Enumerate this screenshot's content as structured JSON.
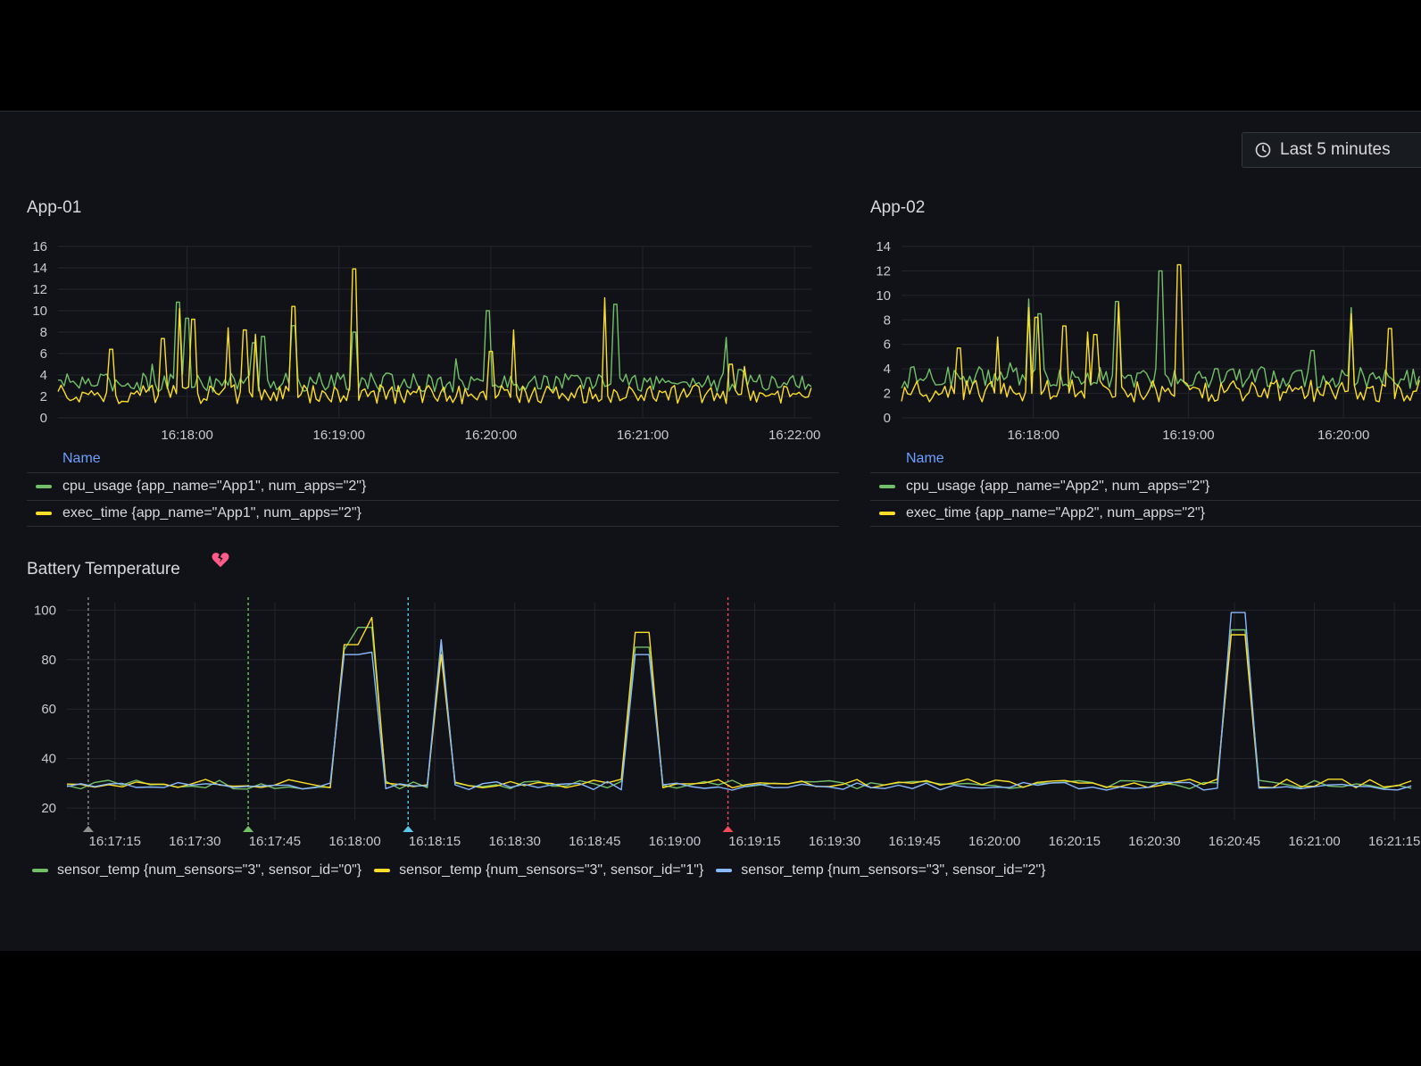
{
  "time_picker": {
    "label": "Last 5 minutes"
  },
  "colors": {
    "green": "#73bf69",
    "yellow": "#fade2a",
    "blue": "#8ab8ff",
    "grid": "#24262c",
    "legend_header": "#6e9fff",
    "annotation_gray": "#8e8e8e",
    "annotation_green": "#73bf69",
    "annotation_cyan": "#5ec7e6",
    "annotation_red": "#f2495c"
  },
  "panels": {
    "app01": {
      "title": "App-01",
      "legend_header": "Name",
      "legend": [
        {
          "label": "cpu_usage {app_name=\"App1\", num_apps=\"2\"}",
          "color": "#73bf69"
        },
        {
          "label": "exec_time {app_name=\"App1\", num_apps=\"2\"}",
          "color": "#fade2a"
        }
      ]
    },
    "app02": {
      "title": "App-02",
      "legend_header": "Name",
      "legend": [
        {
          "label": "cpu_usage {app_name=\"App2\", num_apps=\"2\"}",
          "color": "#73bf69"
        },
        {
          "label": "exec_time {app_name=\"App2\", num_apps=\"2\"}",
          "color": "#fade2a"
        }
      ]
    },
    "battery": {
      "title": "Battery Temperature",
      "status_icon": "broken-heart-icon",
      "legend": [
        {
          "label": "sensor_temp {num_sensors=\"3\", sensor_id=\"0\"}",
          "color": "#73bf69"
        },
        {
          "label": "sensor_temp {num_sensors=\"3\", sensor_id=\"1\"}",
          "color": "#fade2a"
        },
        {
          "label": "sensor_temp {num_sensors=\"3\", sensor_id=\"2\"}",
          "color": "#8ab8ff"
        }
      ]
    }
  },
  "chart_data": [
    {
      "id": "app01",
      "type": "line",
      "title": "App-01",
      "yticks": [
        0,
        2,
        4,
        6,
        8,
        10,
        12,
        14,
        16
      ],
      "ylim": [
        0,
        16
      ],
      "xlim": [
        "16:17:09",
        "16:22:07"
      ],
      "xticks": [
        "16:18:00",
        "16:19:00",
        "16:20:00",
        "16:21:00",
        "16:22:00"
      ],
      "series": [
        {
          "name": "cpu_usage {app_name=\"App1\", num_apps=\"2\"}",
          "color": "#73bf69",
          "baseline": 3.3,
          "spikes": [
            [
              "16:17:46",
              5.0
            ],
            [
              "16:17:56",
              10.8
            ],
            [
              "16:18:00",
              9.3
            ],
            [
              "16:18:26",
              7.0
            ],
            [
              "16:18:30",
              7.6
            ],
            [
              "16:18:42",
              8.6
            ],
            [
              "16:19:06",
              8.0
            ],
            [
              "16:19:46",
              5.5
            ],
            [
              "16:19:59",
              10.0
            ],
            [
              "16:20:49",
              10.6
            ],
            [
              "16:21:33",
              7.5
            ],
            [
              "16:21:38",
              4.5
            ]
          ]
        },
        {
          "name": "exec_time {app_name=\"App1\", num_apps=\"2\"}",
          "color": "#fade2a",
          "baseline": 2.2,
          "spikes": [
            [
              "16:17:30",
              6.4
            ],
            [
              "16:17:50",
              7.4
            ],
            [
              "16:17:57",
              10.2
            ],
            [
              "16:18:02",
              9.2
            ],
            [
              "16:18:16",
              8.4
            ],
            [
              "16:18:23",
              8.2
            ],
            [
              "16:18:27",
              7.8
            ],
            [
              "16:18:42",
              10.4
            ],
            [
              "16:19:06",
              13.9
            ],
            [
              "16:20:00",
              6.2
            ],
            [
              "16:20:09",
              8.2
            ],
            [
              "16:20:45",
              11.2
            ],
            [
              "16:21:35",
              5.0
            ],
            [
              "16:21:40",
              4.8
            ]
          ]
        }
      ]
    },
    {
      "id": "app02",
      "type": "line",
      "title": "App-02",
      "yticks": [
        0,
        2,
        4,
        6,
        8,
        10,
        12,
        14
      ],
      "ylim": [
        0,
        14
      ],
      "xlim": [
        "16:17:09",
        "16:20:30"
      ],
      "xticks": [
        "16:18:00",
        "16:19:00",
        "16:20:00"
      ],
      "series": [
        {
          "name": "cpu_usage {app_name=\"App2\", num_apps=\"2\"}",
          "color": "#73bf69",
          "baseline": 3.3,
          "spikes": [
            [
              "16:17:51",
              4.5
            ],
            [
              "16:17:58",
              9.7
            ],
            [
              "16:18:02",
              8.5
            ],
            [
              "16:18:32",
              9.5
            ],
            [
              "16:18:49",
              12.0
            ],
            [
              "16:19:48",
              5.5
            ],
            [
              "16:20:03",
              9.0
            ]
          ]
        },
        {
          "name": "exec_time {app_name=\"App2\", num_apps=\"2\"}",
          "color": "#fade2a",
          "baseline": 2.2,
          "spikes": [
            [
              "16:17:31",
              5.7
            ],
            [
              "16:17:46",
              6.6
            ],
            [
              "16:17:58",
              9.0
            ],
            [
              "16:18:01",
              8.2
            ],
            [
              "16:18:12",
              7.5
            ],
            [
              "16:18:21",
              7.0
            ],
            [
              "16:18:24",
              6.8
            ],
            [
              "16:18:33",
              9.4
            ],
            [
              "16:18:56",
              12.5
            ],
            [
              "16:20:03",
              8.5
            ],
            [
              "16:20:18",
              7.3
            ]
          ]
        }
      ]
    },
    {
      "id": "battery",
      "type": "line",
      "title": "Battery Temperature",
      "yticks": [
        20,
        40,
        60,
        80,
        100
      ],
      "ylim": [
        15,
        103
      ],
      "xlim": [
        "16:17:06",
        "16:21:20"
      ],
      "xticks": [
        "16:17:15",
        "16:17:30",
        "16:17:45",
        "16:18:00",
        "16:18:15",
        "16:18:30",
        "16:18:45",
        "16:19:00",
        "16:19:15",
        "16:19:30",
        "16:19:45",
        "16:20:00",
        "16:20:15",
        "16:20:30",
        "16:20:45",
        "16:21:00",
        "16:21:15"
      ],
      "annotations": [
        {
          "time": "16:17:10",
          "color": "#8e8e8e"
        },
        {
          "time": "16:17:40",
          "color": "#73bf69"
        },
        {
          "time": "16:18:10",
          "color": "#5ec7e6"
        },
        {
          "time": "16:19:10",
          "color": "#f2495c"
        }
      ],
      "series": [
        {
          "name": "sensor_temp {num_sensors=\"3\", sensor_id=\"0\"}",
          "color": "#73bf69",
          "baseline": 29.5,
          "spikes": [
            [
              "16:18:00",
              84
            ],
            [
              "16:18:02",
              93
            ],
            [
              "16:18:16",
              86
            ],
            [
              "16:18:54",
              85
            ],
            [
              "16:20:45",
              92
            ]
          ]
        },
        {
          "name": "sensor_temp {num_sensors=\"3\", sensor_id=\"1\"}",
          "color": "#fade2a",
          "baseline": 30,
          "spikes": [
            [
              "16:18:00",
              86
            ],
            [
              "16:18:03",
              97
            ],
            [
              "16:18:16",
              82
            ],
            [
              "16:18:54",
              91
            ],
            [
              "16:20:45",
              90
            ]
          ]
        },
        {
          "name": "sensor_temp {num_sensors=\"3\", sensor_id=\"2\"}",
          "color": "#8ab8ff",
          "baseline": 29,
          "spikes": [
            [
              "16:18:00",
              82
            ],
            [
              "16:18:03",
              83
            ],
            [
              "16:18:16",
              88
            ],
            [
              "16:18:54",
              82
            ],
            [
              "16:20:45",
              99
            ]
          ]
        }
      ]
    }
  ]
}
